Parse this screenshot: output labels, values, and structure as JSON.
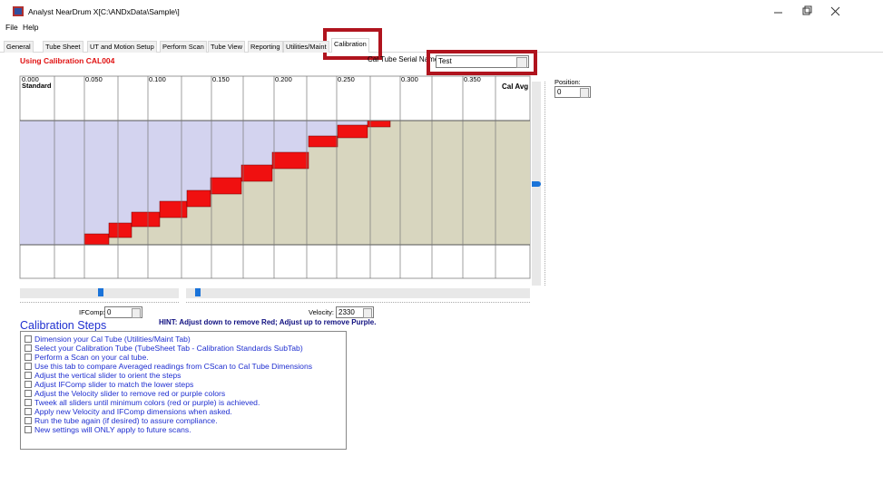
{
  "window": {
    "title": "Analyst NearDrum X[C:\\ANDxData\\Sample\\]"
  },
  "menu": [
    "File",
    "Help"
  ],
  "tabs": [
    "General",
    "Tube Sheet",
    "UT and Motion Setup",
    "Perform Scan",
    "Tube View",
    "Reporting",
    "Utilities/Maint",
    "Calibration"
  ],
  "calibration": {
    "using": "Using Calibration CAL004",
    "serial_label": "Cal Tube Serial Name",
    "serial_value": "Test",
    "headers": [
      "0.000",
      "0.050",
      "0.100",
      "0.150",
      "0.200",
      "0.250",
      "0.300",
      "0.350"
    ],
    "standard": "Standard",
    "cal_avg": "Cal Avg",
    "position_label": "Position:",
    "position_value": 0,
    "ifcomp_label": "IFComp:",
    "ifcomp_value": 0,
    "velocity_label": "Velocity:",
    "velocity_value": 2330,
    "hint": "HINT:  Adjust down to remove Red; Adjust up to remove Purple.",
    "steps_title": "Calibration Steps",
    "steps": [
      "Dimension your Cal Tube (Utilities/Maint Tab)",
      "Select your Calibration Tube (TubeSheet Tab - Calibration Standards SubTab)",
      "Perform a Scan on your cal tube.",
      "Use this tab to compare Averaged readings from CScan to Cal Tube Dimensions",
      "Adjust the vertical slider to orient the steps",
      "Adjust IFComp slider to match the lower steps",
      "Adjust the Velocity slider to remove red or purple colors",
      "Tweek all sliders until minimum colors (red or purple) is achieved.",
      "Apply new Velocity and IFComp dimensions when asked.",
      "Run the tube again (if desired) to assure compliance.",
      "New settings will ONLY apply to future scans."
    ]
  }
}
